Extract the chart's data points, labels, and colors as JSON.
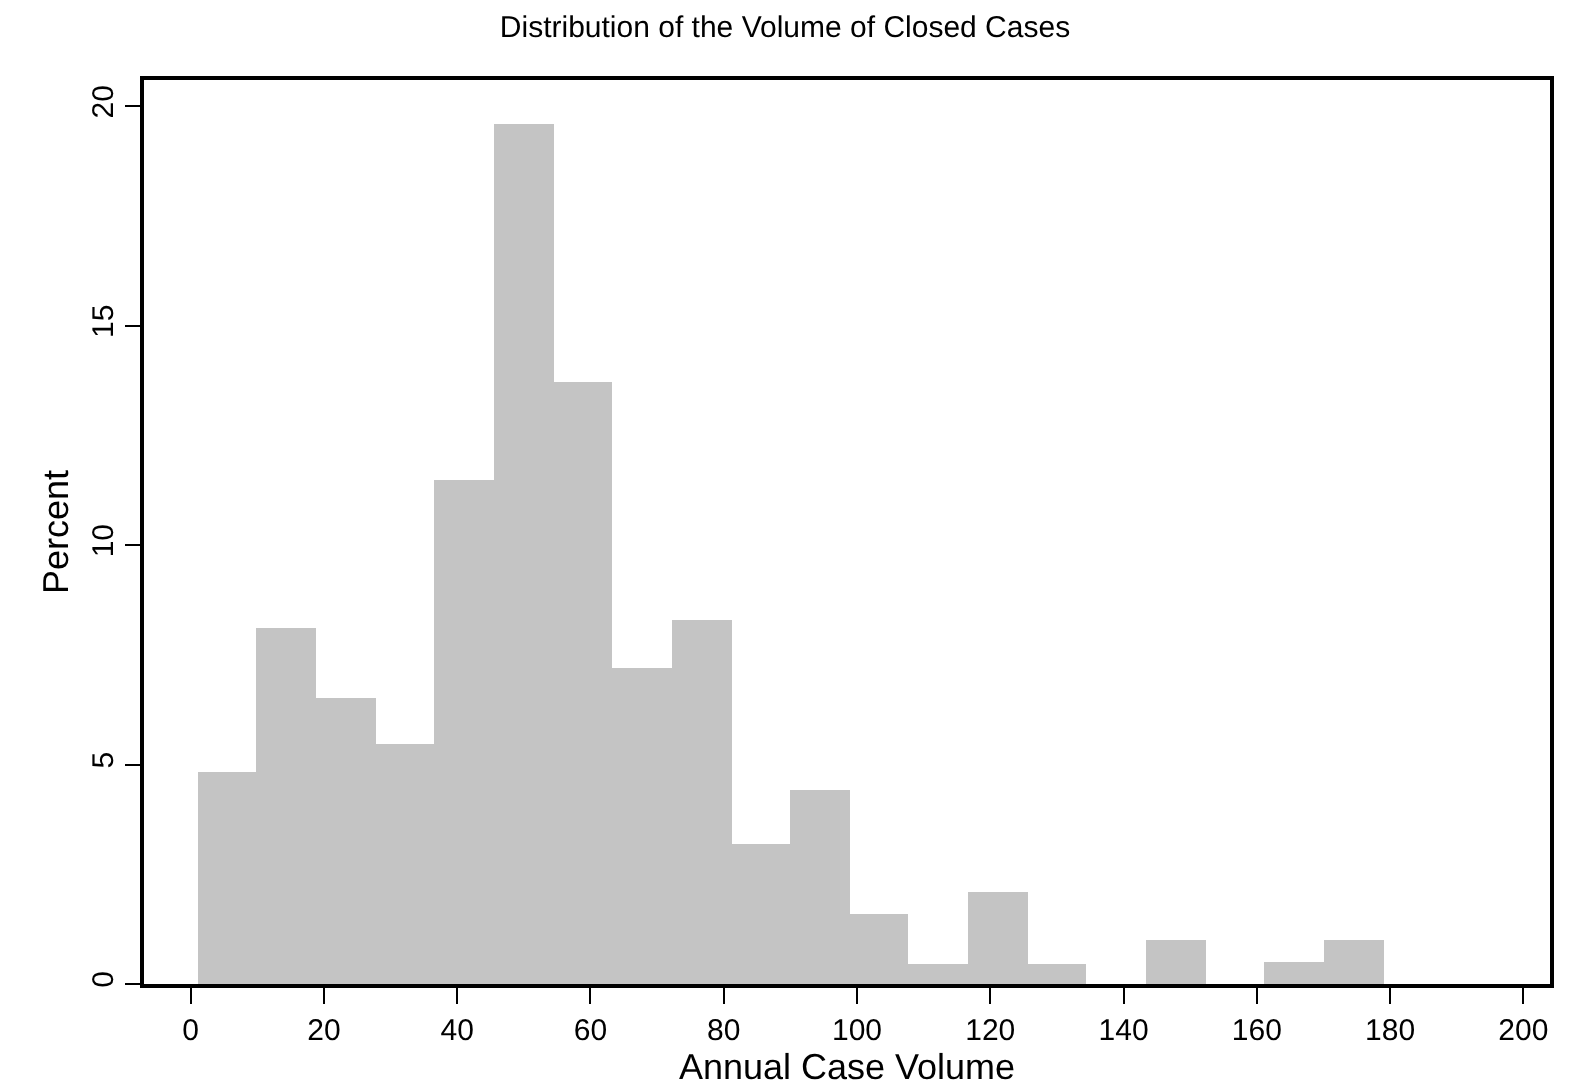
{
  "chart_data": {
    "type": "histogram",
    "title": "Distribution of the Volume of Closed Cases",
    "xlabel": "Annual Case Volume",
    "ylabel": "Percent",
    "bins": [
      1,
      9.9,
      18.8,
      27.7,
      36.6,
      45.5,
      54.4,
      63.3,
      72.2,
      81.1,
      90,
      98.9,
      107.8,
      116.7,
      125.6,
      134.5,
      143.4,
      152.3,
      161.2,
      170.1,
      179
    ],
    "values": [
      4.85,
      8.1,
      6.5,
      5.45,
      11.5,
      19.6,
      13.7,
      7.2,
      8.3,
      3.2,
      4.4,
      1.6,
      0.45,
      2.1,
      0.45,
      0,
      1.0,
      0,
      0.5,
      1.0
    ],
    "color": "#c4c4c4",
    "xlim": [
      -7,
      204
    ],
    "ylim": [
      0,
      20.6
    ],
    "xticks": [
      0,
      20,
      40,
      60,
      80,
      100,
      120,
      140,
      160,
      180,
      200
    ],
    "yticks": [
      0,
      5,
      10,
      15,
      20
    ]
  }
}
